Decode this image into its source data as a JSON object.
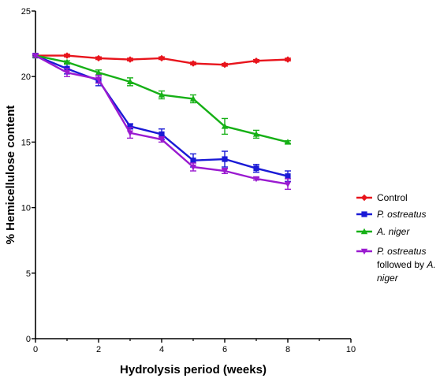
{
  "chart_data": {
    "type": "line",
    "title": "",
    "xlabel": "Hydrolysis period (weeks)",
    "ylabel": "% Hemicellulose content",
    "xlim": [
      0,
      10
    ],
    "ylim": [
      0,
      25
    ],
    "x_ticks": [
      "0",
      "2",
      "4",
      "6",
      "8",
      "10"
    ],
    "y_ticks": [
      "0",
      "5",
      "10",
      "15",
      "20",
      "25"
    ],
    "grid": false,
    "legend_position": "right",
    "series": [
      {
        "name": "Control",
        "color": "#e8141c",
        "marker": "diamond",
        "x": [
          0,
          1,
          2,
          3,
          4,
          5,
          6,
          7,
          8
        ],
        "y": [
          21.6,
          21.6,
          21.4,
          21.3,
          21.4,
          21.0,
          20.9,
          21.2,
          21.3
        ],
        "err": [
          0.1,
          0.1,
          0.1,
          0.1,
          0.1,
          0.1,
          0.1,
          0.1,
          0.1
        ]
      },
      {
        "name": "P. ostreatus",
        "color": "#1a1ad6",
        "marker": "square",
        "x": [
          0,
          1,
          2,
          3,
          4,
          5,
          6,
          7,
          8
        ],
        "y": [
          21.6,
          20.6,
          19.7,
          16.2,
          15.6,
          13.6,
          13.7,
          13.0,
          12.4
        ],
        "err": [
          0.1,
          0.4,
          0.4,
          0.2,
          0.4,
          0.5,
          0.6,
          0.3,
          0.4
        ]
      },
      {
        "name": "A. niger",
        "color": "#16b016",
        "marker": "triangle-up",
        "x": [
          0,
          1,
          2,
          3,
          4,
          5,
          6,
          7,
          8
        ],
        "y": [
          21.6,
          21.1,
          20.3,
          19.6,
          18.6,
          18.3,
          16.2,
          15.6,
          15.0
        ],
        "err": [
          0.1,
          0.1,
          0.2,
          0.3,
          0.3,
          0.3,
          0.6,
          0.3,
          0.1
        ]
      },
      {
        "name": "P. ostreatus followed by A. niger",
        "color": "#9a1ad0",
        "marker": "triangle-down",
        "x": [
          0,
          1,
          2,
          3,
          4,
          5,
          6,
          7,
          8
        ],
        "y": [
          21.6,
          20.3,
          19.8,
          15.7,
          15.2,
          13.1,
          12.8,
          12.2,
          11.8
        ],
        "err": [
          0.1,
          0.3,
          0.3,
          0.4,
          0.2,
          0.3,
          0.2,
          0.1,
          0.4
        ]
      }
    ]
  },
  "legend": [
    {
      "lines": [
        {
          "parts": [
            {
              "text": "Control",
              "italic": false
            }
          ]
        }
      ]
    },
    {
      "lines": [
        {
          "parts": [
            {
              "text": "P. ostreatus",
              "italic": true
            }
          ]
        }
      ]
    },
    {
      "lines": [
        {
          "parts": [
            {
              "text": "A. niger",
              "italic": true
            }
          ]
        }
      ]
    },
    {
      "lines": [
        {
          "parts": [
            {
              "text": "P. ostreatus",
              "italic": true
            }
          ]
        },
        {
          "parts": [
            {
              "text": "followed by ",
              "italic": false
            },
            {
              "text": "A.",
              "italic": true
            }
          ]
        },
        {
          "parts": [
            {
              "text": "niger",
              "italic": true
            }
          ]
        }
      ]
    }
  ]
}
